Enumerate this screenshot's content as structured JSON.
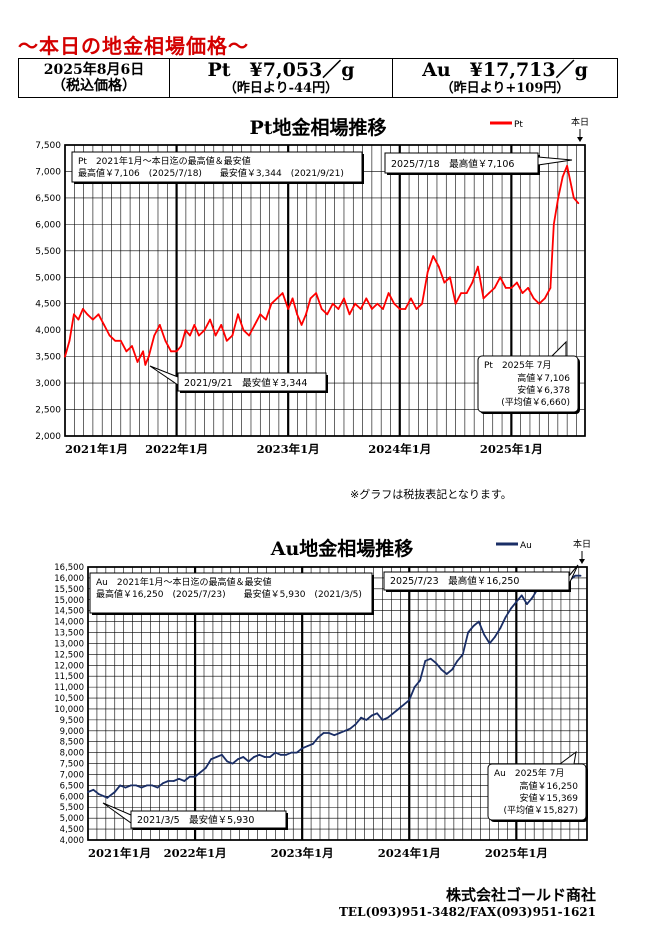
{
  "header": {
    "title": "～本日の地金相場価格～"
  },
  "prices": {
    "date": "2025年8月6日",
    "tax_note": "（税込価格）",
    "pt_price": "Pt　¥7,053／g",
    "pt_change": "（昨日より-44円）",
    "au_price": "Au　¥17,713／g",
    "au_change": "（昨日より+109円）"
  },
  "note": "※グラフは税抜表記となります。",
  "company": {
    "name": "株式会社ゴールド商社",
    "tel": "TEL(093)951-3482/FAX(093)951-1621"
  },
  "chart_data": [
    {
      "type": "line",
      "title": "Pt地金相場推移",
      "series": [
        {
          "name": "Pt",
          "color": "#ff0000",
          "x": [
            2021.0,
            2021.04,
            2021.08,
            2021.12,
            2021.16,
            2021.2,
            2021.25,
            2021.3,
            2021.35,
            2021.4,
            2021.45,
            2021.5,
            2021.55,
            2021.6,
            2021.65,
            2021.7,
            2021.72,
            2021.75,
            2021.8,
            2021.85,
            2021.9,
            2021.95,
            2022.0,
            2022.04,
            2022.08,
            2022.12,
            2022.16,
            2022.2,
            2022.25,
            2022.3,
            2022.35,
            2022.4,
            2022.45,
            2022.5,
            2022.55,
            2022.6,
            2022.65,
            2022.7,
            2022.75,
            2022.8,
            2022.85,
            2022.9,
            2022.95,
            2023.0,
            2023.04,
            2023.08,
            2023.12,
            2023.16,
            2023.2,
            2023.25,
            2023.3,
            2023.35,
            2023.4,
            2023.45,
            2023.5,
            2023.55,
            2023.6,
            2023.65,
            2023.7,
            2023.75,
            2023.8,
            2023.85,
            2023.9,
            2023.95,
            2024.0,
            2024.05,
            2024.1,
            2024.15,
            2024.2,
            2024.25,
            2024.3,
            2024.35,
            2024.4,
            2024.45,
            2024.5,
            2024.55,
            2024.6,
            2024.65,
            2024.7,
            2024.75,
            2024.8,
            2024.85,
            2024.9,
            2024.95,
            2025.0,
            2025.05,
            2025.1,
            2025.15,
            2025.2,
            2025.25,
            2025.3,
            2025.35,
            2025.38,
            2025.42,
            2025.46,
            2025.5,
            2025.54,
            2025.56,
            2025.6
          ],
          "y": [
            3500,
            3800,
            4300,
            4200,
            4400,
            4300,
            4200,
            4300,
            4100,
            3900,
            3800,
            3800,
            3600,
            3700,
            3400,
            3600,
            3344,
            3500,
            3900,
            4100,
            3800,
            3600,
            3600,
            3700,
            4000,
            3900,
            4100,
            3900,
            4000,
            4200,
            3900,
            4100,
            3800,
            3900,
            4300,
            4000,
            3900,
            4100,
            4300,
            4200,
            4500,
            4600,
            4700,
            4400,
            4600,
            4300,
            4100,
            4300,
            4600,
            4700,
            4400,
            4300,
            4500,
            4400,
            4600,
            4300,
            4500,
            4400,
            4600,
            4400,
            4500,
            4400,
            4700,
            4500,
            4400,
            4400,
            4600,
            4400,
            4500,
            5100,
            5400,
            5200,
            4900,
            5000,
            4500,
            4700,
            4700,
            4900,
            5200,
            4600,
            4700,
            4800,
            5000,
            4800,
            4800,
            4900,
            4700,
            4800,
            4600,
            4500,
            4600,
            4800,
            6000,
            6500,
            6900,
            7106,
            6700,
            6500,
            6400
          ]
        }
      ],
      "xticks": [
        "2021年1月",
        "2022年1月",
        "2023年1月",
        "2024年1月",
        "2025年1月"
      ],
      "ylim": [
        2000,
        7500
      ],
      "yticks": [
        "2,000",
        "2,500",
        "3,000",
        "3,500",
        "4,000",
        "4,500",
        "5,000",
        "5,500",
        "6,000",
        "6,500",
        "7,000",
        "7,500"
      ],
      "grid": true,
      "legend": "top-right",
      "today_label": "本日",
      "info_box": {
        "l1": "Pt　2021年1月～本日迄の最高値＆最安値",
        "l2": "最高値￥7,106　(2025/7/18)　　最安値￥3,344　(2021/9/21)"
      },
      "high_callout": "2025/7/18　最高値￥7,106",
      "low_callout": "2021/9/21　最安値￥3,344",
      "month_box": {
        "title": "Pt　2025年 7月",
        "high": "高値￥7,106",
        "low": "安値￥6,378",
        "avg": "(平均値￥6,660)"
      }
    },
    {
      "type": "line",
      "title": "Au地金相場推移",
      "series": [
        {
          "name": "Au",
          "color": "#1a2e66",
          "x": [
            2021.0,
            2021.05,
            2021.1,
            2021.15,
            2021.18,
            2021.25,
            2021.3,
            2021.35,
            2021.4,
            2021.45,
            2021.5,
            2021.55,
            2021.6,
            2021.65,
            2021.7,
            2021.75,
            2021.8,
            2021.85,
            2021.9,
            2021.95,
            2022.0,
            2022.05,
            2022.1,
            2022.15,
            2022.2,
            2022.25,
            2022.3,
            2022.35,
            2022.4,
            2022.45,
            2022.5,
            2022.55,
            2022.6,
            2022.65,
            2022.7,
            2022.75,
            2022.8,
            2022.85,
            2022.9,
            2022.95,
            2023.0,
            2023.05,
            2023.1,
            2023.15,
            2023.2,
            2023.25,
            2023.3,
            2023.35,
            2023.4,
            2023.45,
            2023.5,
            2023.55,
            2023.6,
            2023.65,
            2023.7,
            2023.75,
            2023.8,
            2023.85,
            2023.9,
            2023.95,
            2024.0,
            2024.05,
            2024.1,
            2024.15,
            2024.2,
            2024.25,
            2024.3,
            2024.35,
            2024.4,
            2024.45,
            2024.5,
            2024.55,
            2024.6,
            2024.65,
            2024.7,
            2024.75,
            2024.8,
            2024.85,
            2024.9,
            2024.95,
            2025.0,
            2025.05,
            2025.1,
            2025.15,
            2025.2,
            2025.25,
            2025.3,
            2025.35,
            2025.4,
            2025.45,
            2025.5,
            2025.55,
            2025.6
          ],
          "y": [
            6200,
            6300,
            6100,
            6000,
            5930,
            6200,
            6500,
            6400,
            6500,
            6500,
            6400,
            6500,
            6500,
            6400,
            6600,
            6700,
            6700,
            6800,
            6700,
            6900,
            6900,
            7100,
            7300,
            7700,
            7800,
            7900,
            7600,
            7500,
            7700,
            7800,
            7600,
            7800,
            7900,
            7800,
            7800,
            8000,
            7900,
            7900,
            8000,
            8000,
            8200,
            8300,
            8400,
            8700,
            8900,
            8900,
            8800,
            8900,
            9000,
            9100,
            9300,
            9600,
            9500,
            9700,
            9800,
            9500,
            9600,
            9800,
            10000,
            10200,
            10400,
            11000,
            11300,
            12200,
            12300,
            12100,
            11800,
            11600,
            11800,
            12200,
            12500,
            13500,
            13800,
            14000,
            13400,
            13000,
            13300,
            13700,
            14200,
            14600,
            14900,
            15200,
            14800,
            15100,
            15500,
            15700,
            15400,
            15800,
            16000,
            16250,
            15900,
            16100,
            16100
          ]
        }
      ],
      "xticks": [
        "2021年1月",
        "2022年1月",
        "2023年1月",
        "2024年1月",
        "2025年1月"
      ],
      "ylim": [
        4000,
        16500
      ],
      "yticks": [
        "4,000",
        "4,500",
        "5,000",
        "5,500",
        "6,000",
        "6,500",
        "7,000",
        "7,500",
        "8,000",
        "8,500",
        "9,000",
        "9,500",
        "10,000",
        "10,500",
        "11,000",
        "11,500",
        "12,000",
        "12,500",
        "13,000",
        "13,500",
        "14,000",
        "14,500",
        "15,000",
        "15,500",
        "16,000",
        "16,500"
      ],
      "grid": true,
      "legend": "top-right",
      "today_label": "本日",
      "info_box": {
        "l1": "Au　2021年1月～本日迄の最高値＆最安値",
        "l2": "最高値￥16,250　(2025/7/23)　　最安値￥5,930　(2021/3/5)"
      },
      "high_callout": "2025/7/23　最高値￥16,250",
      "low_callout": "2021/3/5　最安値￥5,930",
      "month_box": {
        "title": "Au　2025年 7月",
        "high": "高値￥16,250",
        "low": "安値￥15,369",
        "avg": "(平均値￥15,827)"
      }
    }
  ]
}
